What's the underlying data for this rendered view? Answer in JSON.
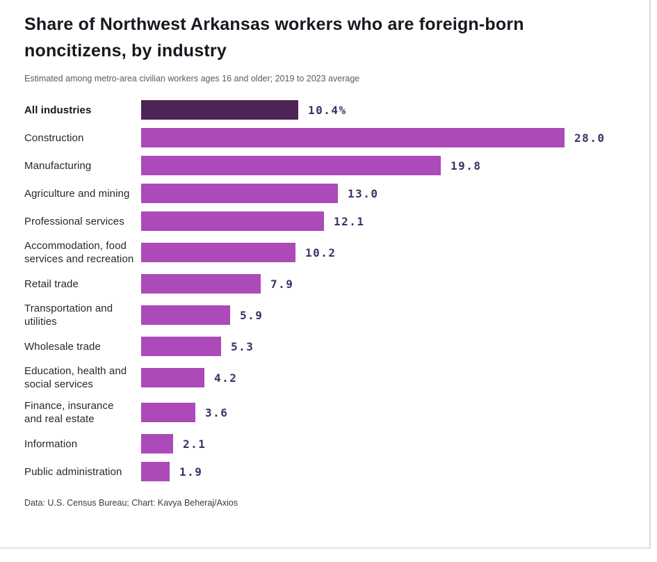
{
  "chart_data": {
    "type": "bar",
    "orientation": "horizontal",
    "title": "Share of Northwest Arkansas workers who are foreign-born noncitizens, by industry",
    "subtitle": "Estimated among metro-area civilian workers ages 16 and older; 2019 to 2023 average",
    "footer": "Data: U.S. Census Bureau; Chart: Kavya Beheraj/Axios",
    "unit": "percent",
    "xlim": [
      0,
      28
    ],
    "grid": false,
    "legend": "none",
    "value_labels_position": "end-of-bar",
    "highlight_index": 0,
    "categories": [
      "All industries",
      "Construction",
      "Manufacturing",
      "Agriculture and mining",
      "Professional services",
      "Accommodation, food services and recreation",
      "Retail trade",
      "Transportation and utilities",
      "Wholesale trade",
      "Education, health and social services",
      "Finance, insurance and real estate",
      "Information",
      "Public administration"
    ],
    "values": [
      10.4,
      28.0,
      19.8,
      13.0,
      12.1,
      10.2,
      7.9,
      5.9,
      5.3,
      4.2,
      3.6,
      2.1,
      1.9
    ],
    "value_labels": [
      "10.4%",
      "28.0",
      "19.8",
      "13.0",
      "12.1",
      "10.2",
      "7.9",
      "5.9",
      "5.3",
      "4.2",
      "3.6",
      "2.1",
      "1.9"
    ],
    "colors": {
      "bar": "#ab4ab8",
      "bar_highlight": "#4e2356",
      "value_text": "#3d3166",
      "title_text": "#17181f",
      "subtitle_text": "#5b5b62",
      "label_text": "#24272f",
      "footer_text": "#3c3c42",
      "frame_border": "#d9d9d9"
    }
  }
}
